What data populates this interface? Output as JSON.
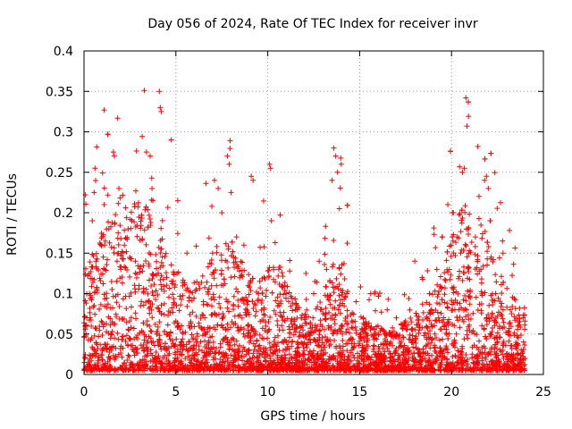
{
  "chart_data": {
    "type": "scatter",
    "title": "Day 056 of 2024, Rate Of TEC Index for receiver invr",
    "xlabel": "GPS time / hours",
    "ylabel": "ROTI / TECUs",
    "xlim": [
      0,
      25
    ],
    "ylim": [
      0,
      0.4
    ],
    "grid": true,
    "marker": "+",
    "color": "#ff0000",
    "x_ticks": [
      0,
      5,
      10,
      15,
      20,
      25
    ],
    "x_tick_labels": [
      "0",
      "5",
      "10",
      "15",
      "20",
      "25"
    ],
    "y_ticks": [
      0,
      0.05,
      0.1,
      0.15,
      0.2,
      0.25,
      0.3,
      0.35,
      0.4
    ],
    "y_tick_labels": [
      "0",
      "0.05",
      "0.1",
      "0.15",
      "0.2",
      "0.25",
      "0.3",
      "0.35",
      "0.4"
    ],
    "series": [
      {
        "name": "ROTI",
        "x": [
          0.15,
          0.3,
          0.45,
          0.55,
          0.6,
          0.65,
          0.95,
          1.1,
          1.35,
          1.6,
          1.65,
          1.8,
          1.9,
          2.0,
          2.2,
          2.4,
          2.6,
          2.8,
          3.0,
          3.4,
          3.6,
          3.7,
          3.75,
          4.1,
          4.15,
          4.2,
          4.5,
          4.75,
          5.1,
          5.6,
          6.5,
          7.0,
          7.1,
          7.3,
          7.5,
          7.8,
          7.9,
          8.0,
          8.3,
          8.7,
          9.1,
          9.2,
          9.5,
          9.8,
          10.1,
          10.15,
          10.2,
          10.6,
          11.0,
          11.5,
          12.0,
          12.5,
          12.8,
          13.2,
          13.5,
          13.6,
          13.7,
          13.8,
          13.9,
          14.0,
          14.3,
          14.8,
          15.2,
          15.6,
          16.0,
          16.5,
          17.0,
          17.5,
          18.0,
          18.4,
          18.8,
          19.2,
          19.5,
          19.8,
          20.1,
          20.3,
          20.5,
          20.6,
          20.7,
          20.9,
          21.3,
          21.6,
          21.8,
          21.9,
          22.0,
          22.1,
          22.4,
          22.8,
          23.2,
          23.6,
          23.9
        ],
        "y": [
          0.06,
          0.1,
          0.19,
          0.225,
          0.255,
          0.14,
          0.16,
          0.21,
          0.18,
          0.275,
          0.27,
          0.14,
          0.23,
          0.13,
          0.16,
          0.18,
          0.19,
          0.14,
          0.11,
          0.275,
          0.27,
          0.23,
          0.215,
          0.35,
          0.33,
          0.325,
          0.12,
          0.29,
          0.215,
          0.15,
          0.09,
          0.15,
          0.24,
          0.23,
          0.2,
          0.27,
          0.26,
          0.225,
          0.17,
          0.16,
          0.245,
          0.24,
          0.1,
          0.12,
          0.26,
          0.255,
          0.19,
          0.13,
          0.1,
          0.08,
          0.07,
          0.1,
          0.14,
          0.13,
          0.24,
          0.28,
          0.27,
          0.25,
          0.205,
          0.26,
          0.1,
          0.09,
          0.07,
          0.1,
          0.06,
          0.08,
          0.07,
          0.06,
          0.14,
          0.12,
          0.1,
          0.13,
          0.17,
          0.21,
          0.2,
          0.17,
          0.15,
          0.25,
          0.255,
          0.18,
          0.17,
          0.13,
          0.24,
          0.245,
          0.23,
          0.19,
          0.1,
          0.15,
          0.08,
          0.06,
          0.07
        ]
      }
    ]
  }
}
